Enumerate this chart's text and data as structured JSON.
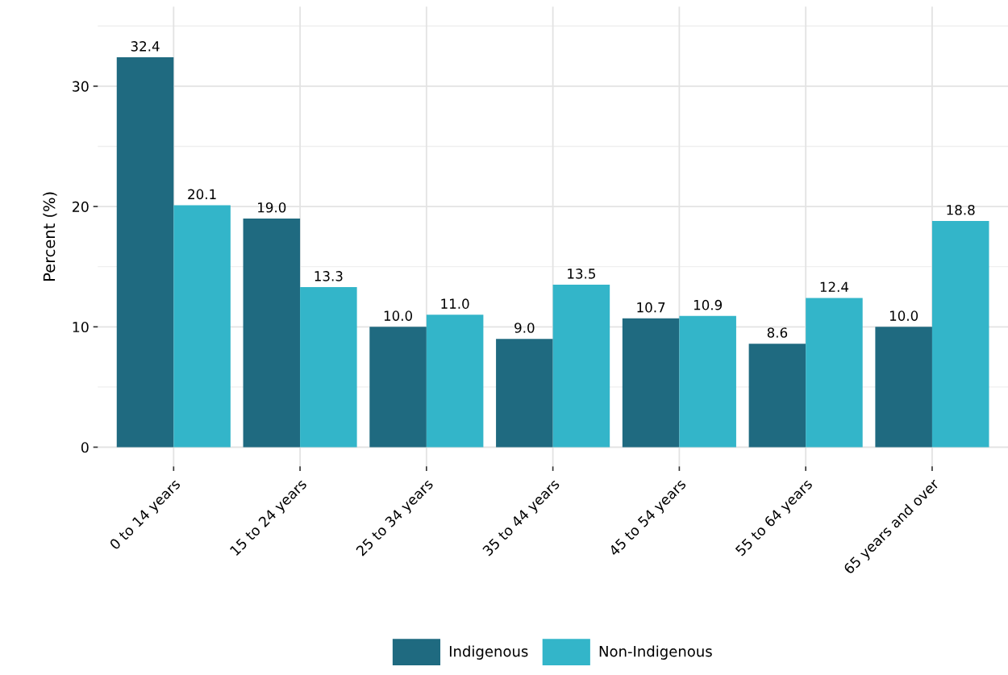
{
  "chart_data": {
    "type": "bar",
    "ylabel": "Percent (%)",
    "categories": [
      "0 to 14 years",
      "15 to 24 years",
      "25 to 34 years",
      "35 to 44 years",
      "45 to 54 years",
      "55 to 64 years",
      "65 years and over"
    ],
    "series": [
      {
        "name": "Indigenous",
        "color": "#1f6a80",
        "values": [
          32.4,
          19.0,
          10.0,
          9.0,
          10.7,
          8.6,
          10.0
        ],
        "value_labels": [
          "32.4",
          "19.0",
          "10.0",
          "9.0",
          "10.7",
          "8.6",
          "10.0"
        ]
      },
      {
        "name": "Non-Indigenous",
        "color": "#33b5c9",
        "values": [
          20.1,
          13.3,
          11.0,
          13.5,
          10.9,
          12.4,
          18.8
        ],
        "value_labels": [
          "20.1",
          "13.3",
          "11.0",
          "13.5",
          "10.9",
          "12.4",
          "18.8"
        ]
      }
    ],
    "ylim": [
      -1.6,
      36.6
    ],
    "yticks": [
      0,
      10,
      20,
      30
    ],
    "grid": true,
    "legend": "bottom"
  }
}
